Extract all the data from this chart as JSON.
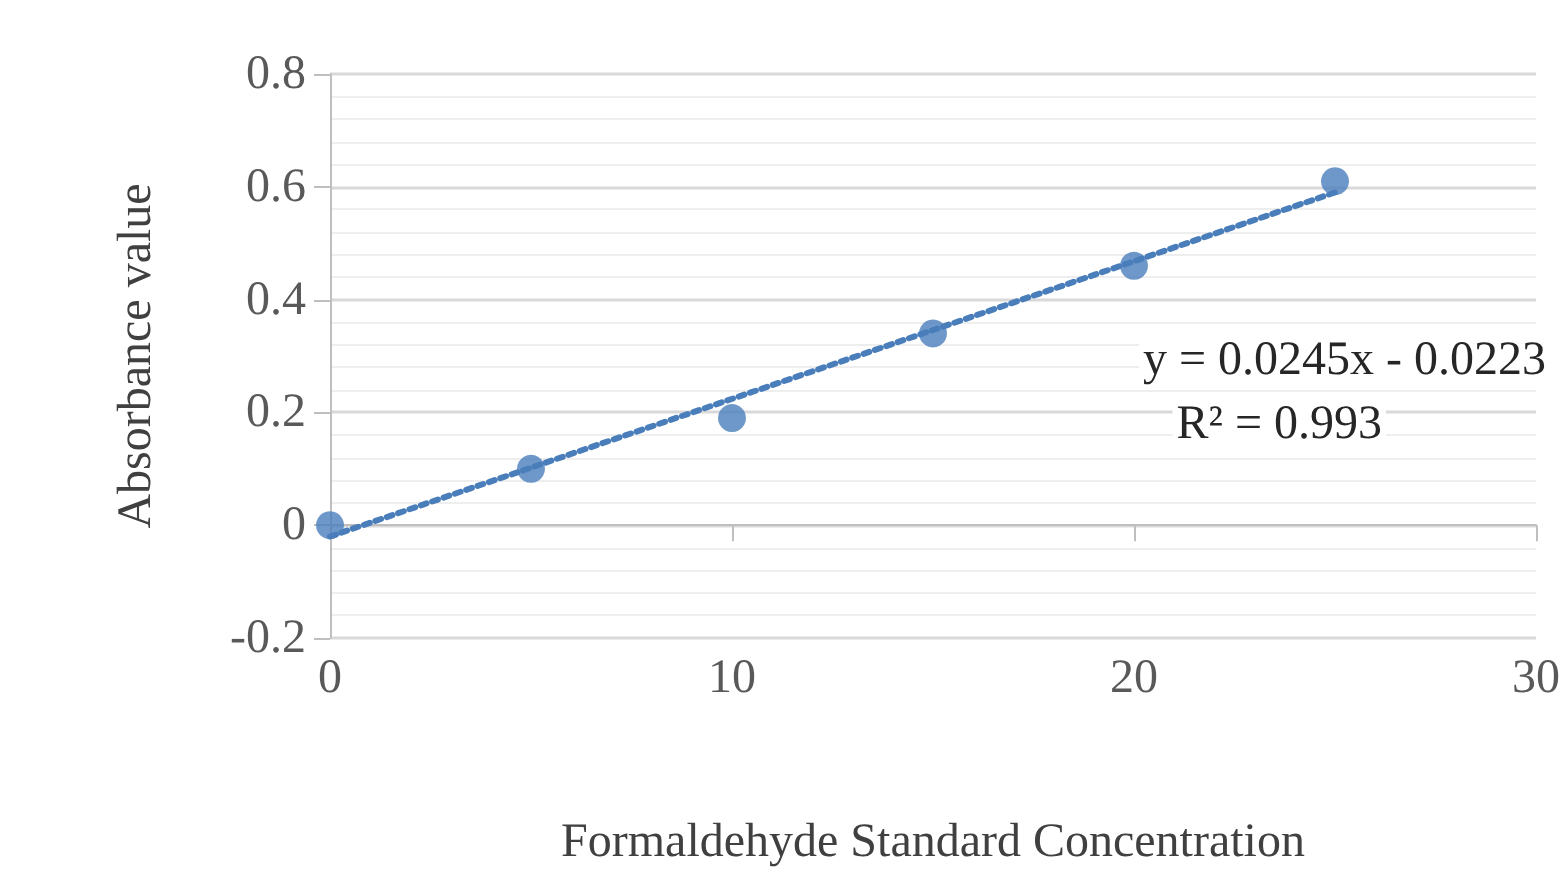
{
  "chart_data": {
    "type": "scatter",
    "xlabel": "Formaldehyde Standard Concentration",
    "ylabel": "Absorbance value",
    "series": [
      {
        "color": "#4a7ebb",
        "x": [
          0,
          5,
          10,
          15,
          20,
          25
        ],
        "values": [
          0,
          0.1,
          0.19,
          0.34,
          0.46,
          0.61
        ]
      },
      {
        "type": "line",
        "color": "#4a7ebb",
        "line_style": "dotted",
        "marker": "none",
        "x": [
          0,
          25
        ],
        "values": [
          -0.02,
          0.59
        ]
      }
    ],
    "marker": "circle",
    "xlim": [
      0,
      30
    ],
    "xticks": [
      0,
      10,
      20,
      30
    ],
    "ylim": [
      -0.2,
      0.8
    ],
    "yticks": [
      -0.2,
      0,
      0.2,
      0.4,
      0.6,
      0.8
    ],
    "grid": "y",
    "annotations": [
      "y = 0.0245x - 0.0223",
      "R² = 0.993"
    ]
  }
}
